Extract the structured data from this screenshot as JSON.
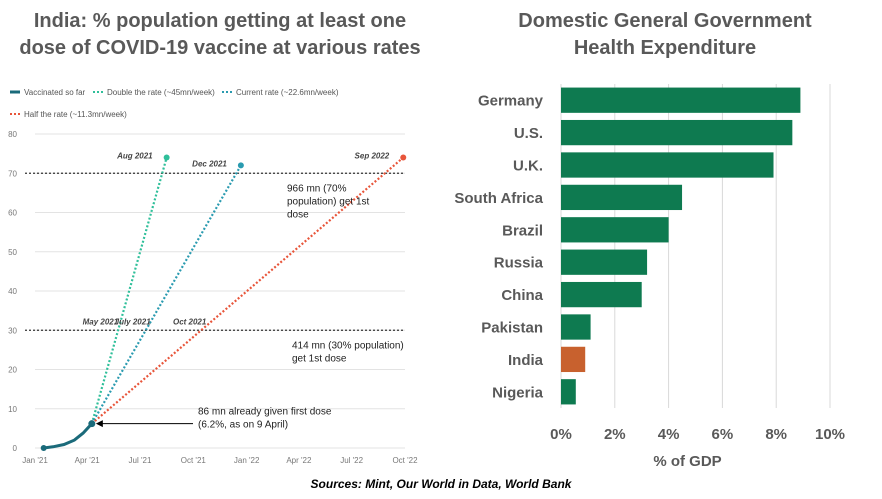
{
  "left_chart": {
    "title": "India: % population getting at least one dose of COVID-19 vaccine at various rates"
  },
  "right_chart": {
    "title": "Domestic General Government Health Expenditure"
  },
  "source_note": "Sources: Mint, Our World in Data, World Bank",
  "colors": {
    "vaccinated": "#1a6a7a",
    "double_rate": "#2fbf9a",
    "current_rate": "#2a9bb0",
    "half_rate": "#e8553a",
    "bar_default": "#0e7a50",
    "bar_highlight": "#c8612e"
  },
  "chart_data": [
    {
      "type": "line",
      "x_axis_kind": "date",
      "xlim": [
        "2021-01-01",
        "2022-10-01"
      ],
      "ylim": [
        0,
        80
      ],
      "yticks": [
        0,
        10,
        20,
        30,
        40,
        50,
        60,
        70,
        80
      ],
      "xtick_labels": [
        {
          "date": "2021-01-01",
          "label": "Jan '21"
        },
        {
          "date": "2021-04-01",
          "label": "Apr '21"
        },
        {
          "date": "2021-07-01",
          "label": "Jul '21"
        },
        {
          "date": "2021-10-01",
          "label": "Oct '21"
        },
        {
          "date": "2022-01-01",
          "label": "Jan '22"
        },
        {
          "date": "2022-04-01",
          "label": "Apr '22"
        },
        {
          "date": "2022-07-01",
          "label": "Jul '22"
        },
        {
          "date": "2022-10-01",
          "label": "Oct '22"
        }
      ],
      "series": [
        {
          "name": "Vaccinated so far",
          "style": "solid",
          "points": [
            [
              "2021-01-16",
              0
            ],
            [
              "2021-02-01",
              0.3
            ],
            [
              "2021-02-20",
              0.9
            ],
            [
              "2021-03-10",
              2.0
            ],
            [
              "2021-03-25",
              3.8
            ],
            [
              "2021-04-09",
              6.2
            ]
          ]
        },
        {
          "name": "Double the rate (~45mn/week)",
          "style": "dotted",
          "points": [
            [
              "2021-04-09",
              6.2
            ],
            [
              "2021-08-16",
              74
            ]
          ]
        },
        {
          "name": "Current rate (~22.6mn/week)",
          "style": "dotted",
          "points": [
            [
              "2021-04-09",
              6.2
            ],
            [
              "2021-12-22",
              72
            ]
          ]
        },
        {
          "name": "Half the rate (~11.3mn/week)",
          "style": "dotted",
          "points": [
            [
              "2021-04-09",
              6.2
            ],
            [
              "2022-09-28",
              74
            ]
          ]
        }
      ],
      "reference_lines": [
        {
          "y": 70,
          "label": "966 mn (70% population) get 1st dose"
        },
        {
          "y": 30,
          "label": "414 mn (30% population) get 1st dose"
        }
      ],
      "annotations": [
        {
          "text": "Aug 2021",
          "x": "2021-08-16",
          "y": 74
        },
        {
          "text": "Dec 2021",
          "x": "2021-12-22",
          "y": 72
        },
        {
          "text": "Sep 2022",
          "x": "2022-09-28",
          "y": 74
        },
        {
          "text": "May 2021",
          "x": "2021-05-21",
          "y": 30
        },
        {
          "text": "July 2021",
          "x": "2021-07-16",
          "y": 30
        },
        {
          "text": "Oct 2021",
          "x": "2021-10-20",
          "y": 30
        },
        {
          "text": "86 mn already given first dose (6.2%, as on 9 April)",
          "x": "2021-04-09",
          "y": 6.2
        }
      ]
    },
    {
      "type": "bar",
      "orientation": "horizontal",
      "categories": [
        "Germany",
        "U.S.",
        "U.K.",
        "South Africa",
        "Brazil",
        "Russia",
        "China",
        "Pakistan",
        "India",
        "Nigeria"
      ],
      "values": [
        8.9,
        8.6,
        7.9,
        4.5,
        4.0,
        3.2,
        3.0,
        1.1,
        0.9,
        0.55
      ],
      "highlight": "India",
      "xlabel": "% of GDP",
      "xlim": [
        0,
        10
      ],
      "xticks": [
        "0%",
        "2%",
        "4%",
        "6%",
        "8%",
        "10%"
      ],
      "grid": true
    }
  ]
}
